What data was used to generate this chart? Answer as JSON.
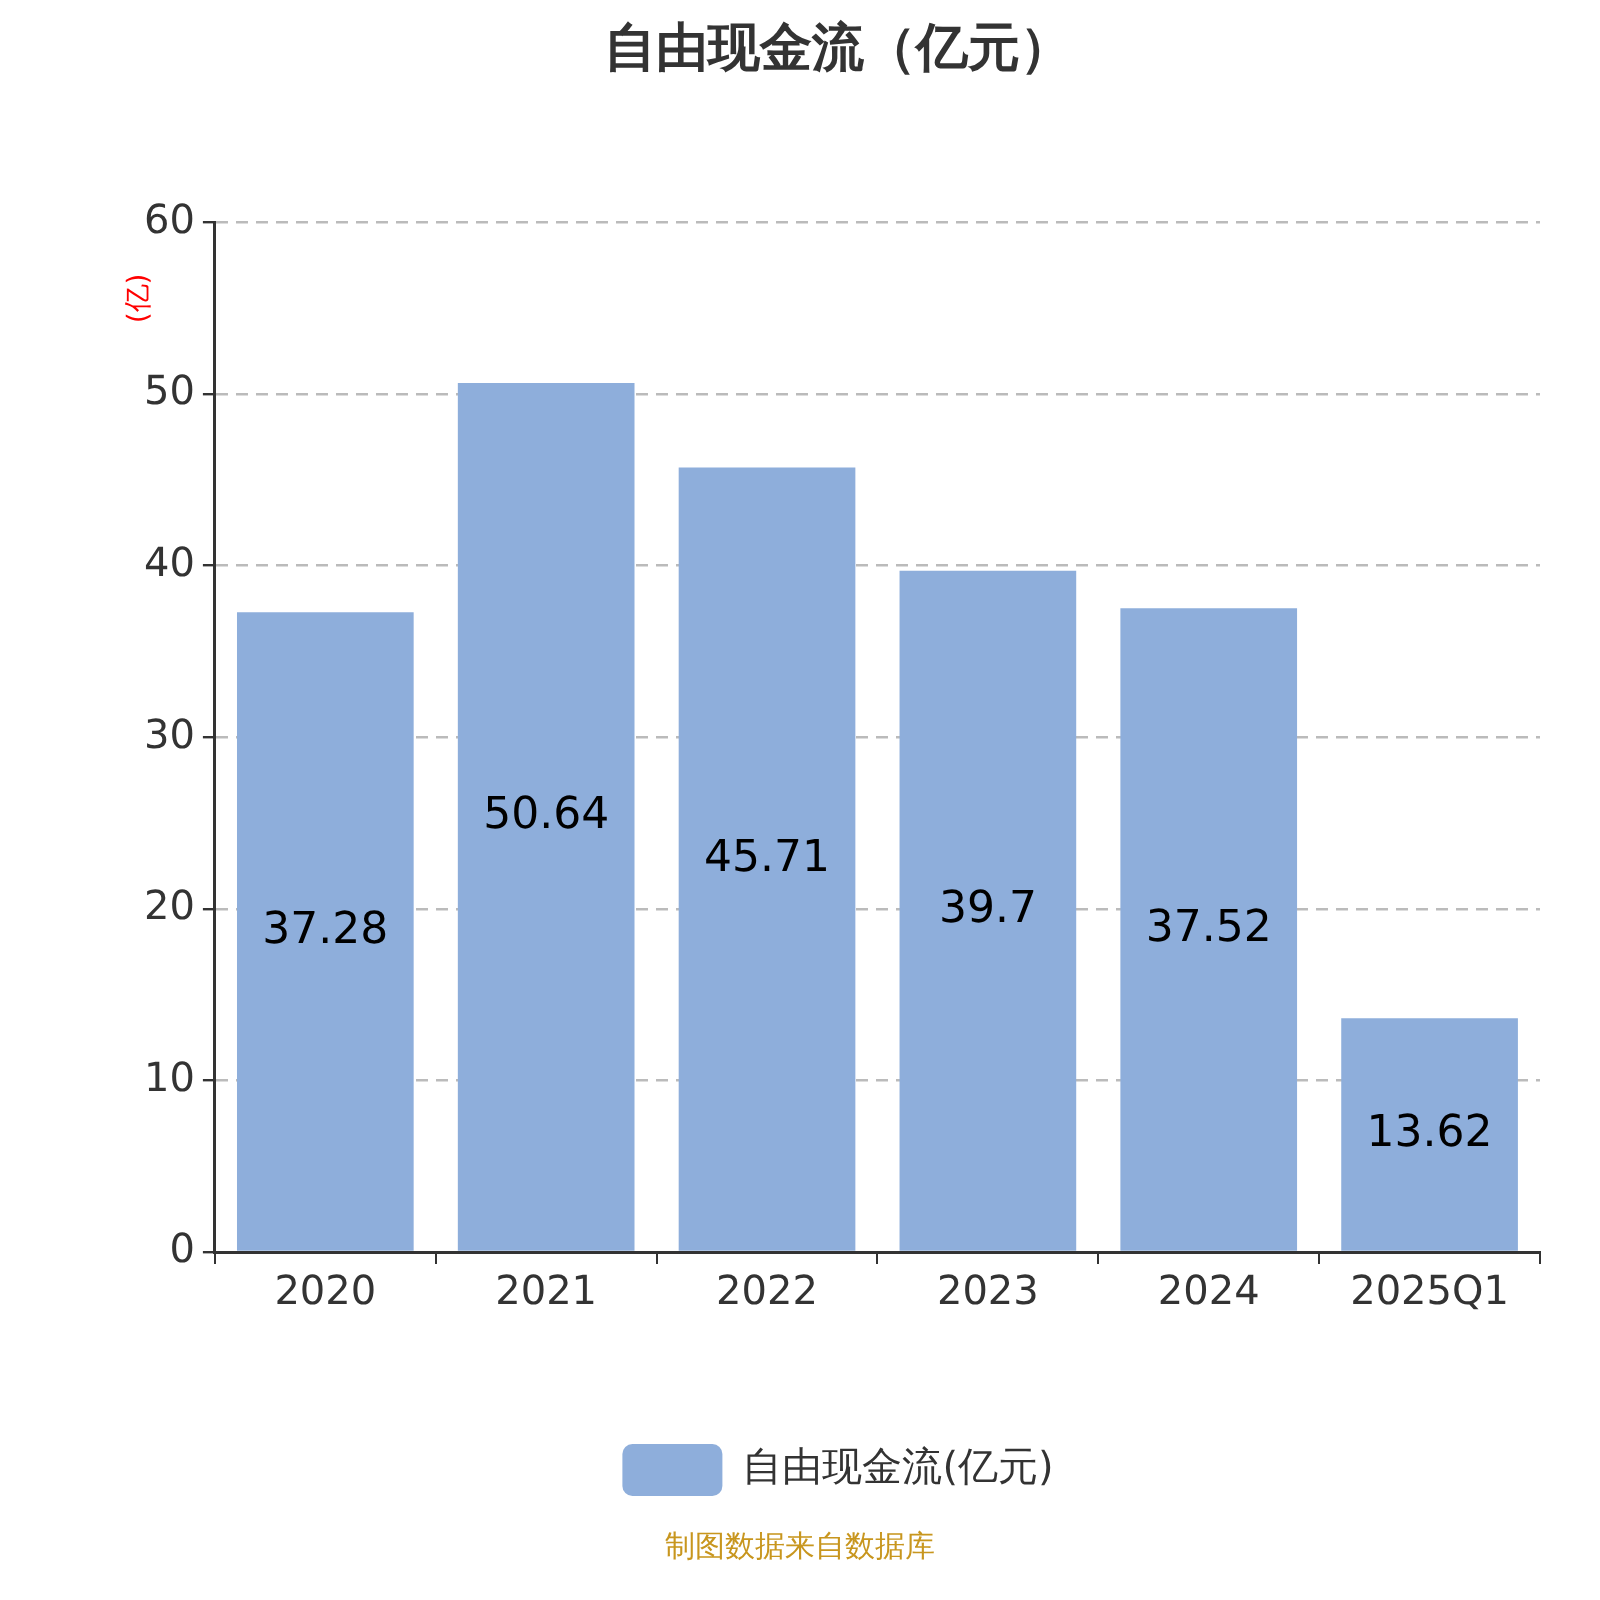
{
  "chart_data": {
    "type": "bar",
    "title": "自由现金流（亿元）",
    "ylabel": "(亿)",
    "categories": [
      "2020",
      "2021",
      "2022",
      "2023",
      "2024",
      "2025Q1"
    ],
    "series": [
      {
        "name": "自由现金流(亿元)",
        "color": "#8eaedb",
        "values": [
          37.28,
          50.64,
          45.71,
          39.7,
          37.52,
          13.62
        ]
      }
    ],
    "ylim": [
      0,
      60
    ],
    "yticks": [
      0,
      10,
      20,
      30,
      40,
      50,
      60
    ],
    "grid": "y",
    "legend": "bottom",
    "data_labels": true,
    "annotations": [
      "制图数据来自数据库"
    ]
  }
}
